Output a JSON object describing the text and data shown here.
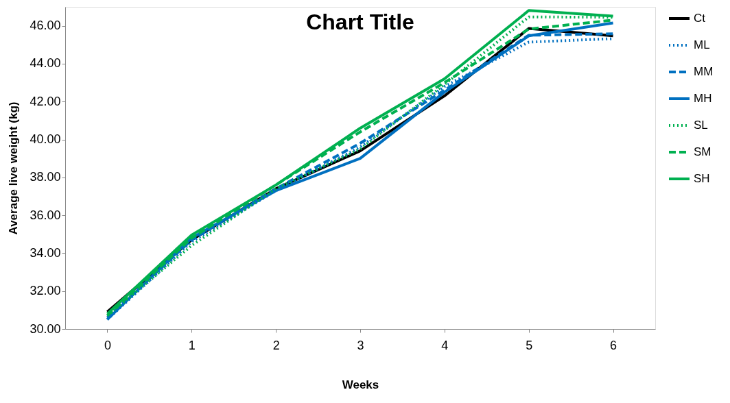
{
  "chart_data": {
    "type": "line",
    "title": "Chart Title",
    "xlabel": "Weeks",
    "ylabel": "Average live weight (kg)",
    "categories": [
      "0",
      "1",
      "2",
      "3",
      "4",
      "5",
      "6"
    ],
    "ylim": [
      30,
      47
    ],
    "yticks": [
      {
        "value": 30,
        "label": "30.00"
      },
      {
        "value": 32,
        "label": "32.00"
      },
      {
        "value": 34,
        "label": "34.00"
      },
      {
        "value": 36,
        "label": "36.00"
      },
      {
        "value": 38,
        "label": "38.00"
      },
      {
        "value": 40,
        "label": "40.00"
      },
      {
        "value": 42,
        "label": "42.00"
      },
      {
        "value": 44,
        "label": "44.00"
      },
      {
        "value": 46,
        "label": "46.00"
      }
    ],
    "grid": false,
    "legend": "right",
    "marker": "none",
    "series": [
      {
        "name": "Ct",
        "color": "#000000",
        "line_style": "solid",
        "values": [
          30.9,
          34.7,
          37.4,
          39.4,
          42.3,
          45.86,
          45.47
        ]
      },
      {
        "name": "ML",
        "color": "#0070c0",
        "line_style": "dotted",
        "values": [
          30.5,
          34.6,
          37.3,
          39.6,
          42.8,
          45.14,
          45.32
        ]
      },
      {
        "name": "MM",
        "color": "#0070c0",
        "line_style": "dashed",
        "values": [
          30.6,
          34.7,
          37.4,
          39.8,
          42.6,
          45.5,
          45.58
        ]
      },
      {
        "name": "MH",
        "color": "#0070c0",
        "line_style": "solid",
        "values": [
          30.5,
          34.8,
          37.3,
          39.0,
          42.5,
          45.47,
          46.15
        ]
      },
      {
        "name": "SL",
        "color": "#00b050",
        "line_style": "dotted",
        "values": [
          30.7,
          34.4,
          37.4,
          39.5,
          42.9,
          46.47,
          46.45
        ]
      },
      {
        "name": "SM",
        "color": "#00b050",
        "line_style": "dashed",
        "values": [
          30.7,
          34.8,
          37.6,
          40.4,
          43.0,
          45.83,
          46.3
        ]
      },
      {
        "name": "SH",
        "color": "#00b050",
        "line_style": "solid",
        "values": [
          30.8,
          34.96,
          37.6,
          40.6,
          43.2,
          46.81,
          46.51
        ]
      }
    ]
  }
}
